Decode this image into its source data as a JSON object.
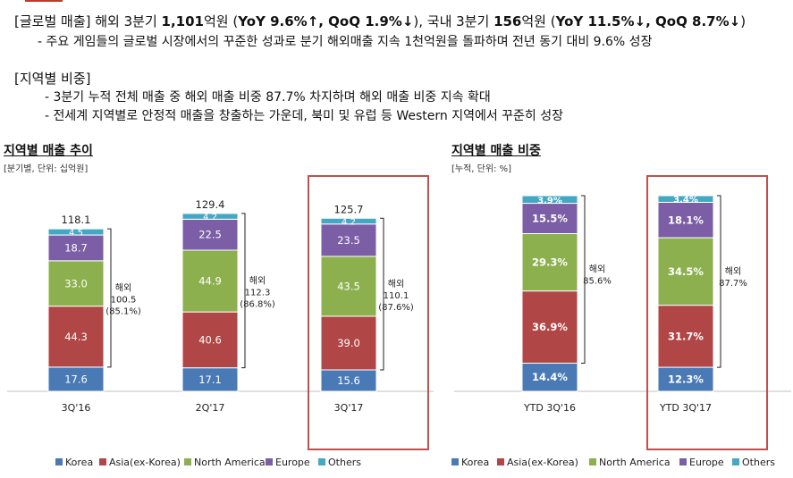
{
  "summary": {
    "line1_parts": [
      {
        "t": "[글로벌 매출] 해외 3분기 ",
        "b": false
      },
      {
        "t": "1,101",
        "b": true
      },
      {
        "t": "억원 (",
        "b": false
      },
      {
        "t": "YoY 9.6%↑, QoQ 1.9%↓",
        "b": true
      },
      {
        "t": "), 국내 3분기 ",
        "b": false
      },
      {
        "t": "156",
        "b": true
      },
      {
        "t": "억원 (",
        "b": false
      },
      {
        "t": "YoY 11.5%↓, QoQ 8.7%↓",
        "b": true
      },
      {
        "t": ")",
        "b": false
      }
    ],
    "line1_bullet": "- 주요 게임들의 글로벌 시장에서의 꾸준한 성과로 분기 해외매출 지속 1천억원을 돌파하며 전년 동기 대비 9.6% 성장",
    "line2_header": "[지역별 비중]",
    "line2_bullets": [
      "- 3분기 누적 전체 매출 중 해외 매출 비중 87.7% 차지하며 해외 매출 비중 지속 확대",
      "- 전세계 지역별로 안정적 매출을 창출하는 가운데, 북미 및 유럽 등 Western 지역에서 꾸준히 성장"
    ]
  },
  "legend": {
    "names": [
      "Korea",
      "Asia(ex-Korea)",
      "North America",
      "Europe",
      "Others"
    ]
  },
  "colors": {
    "Korea": "#4a7ab5",
    "Asia(ex-Korea)": "#b04645",
    "North America": "#8db04f",
    "Europe": "#7b5ea5",
    "Others": "#43a9c3",
    "highlight_box": "#c0504d"
  },
  "chart_data": [
    {
      "type": "bar",
      "stacked": true,
      "title": "지역별 매출 추이",
      "unit_note": "[분기별, 단위: 십억원]",
      "categories": [
        "3Q'16",
        "2Q'17",
        "3Q'17"
      ],
      "totals": [
        "118.1",
        "129.4",
        "125.7"
      ],
      "series": [
        {
          "name": "Korea",
          "values": [
            17.6,
            17.1,
            15.6
          ]
        },
        {
          "name": "Asia(ex-Korea)",
          "values": [
            44.3,
            40.6,
            39.0
          ]
        },
        {
          "name": "North America",
          "values": [
            33.0,
            44.9,
            43.5
          ]
        },
        {
          "name": "Europe",
          "values": [
            18.7,
            22.5,
            23.5
          ]
        },
        {
          "name": "Others",
          "values": [
            4.5,
            4.2,
            4.2
          ]
        }
      ],
      "overseas": [
        {
          "label": "해외",
          "value": "100.5",
          "pct": "(85.1%)"
        },
        {
          "label": "해외",
          "value": "112.3",
          "pct": "(86.8%)"
        },
        {
          "label": "해외",
          "value": "110.1",
          "pct": "(87.6%)"
        }
      ],
      "highlighted_category": "3Q'17"
    },
    {
      "type": "bar",
      "stacked": true,
      "title": "지역별 매출 비중",
      "unit_note": "[누적, 단위: %]",
      "categories": [
        "YTD 3Q'16",
        "YTD 3Q'17"
      ],
      "series": [
        {
          "name": "Korea",
          "values": [
            14.4,
            12.3
          ]
        },
        {
          "name": "Asia(ex-Korea)",
          "values": [
            36.9,
            31.7
          ]
        },
        {
          "name": "North America",
          "values": [
            29.3,
            34.5
          ]
        },
        {
          "name": "Europe",
          "values": [
            15.5,
            18.1
          ]
        },
        {
          "name": "Others",
          "values": [
            3.9,
            3.4
          ]
        }
      ],
      "overseas": [
        {
          "label": "해외",
          "value": "85.6%"
        },
        {
          "label": "해외",
          "value": "87.7%"
        }
      ],
      "highlighted_category": "YTD 3Q'17"
    }
  ]
}
